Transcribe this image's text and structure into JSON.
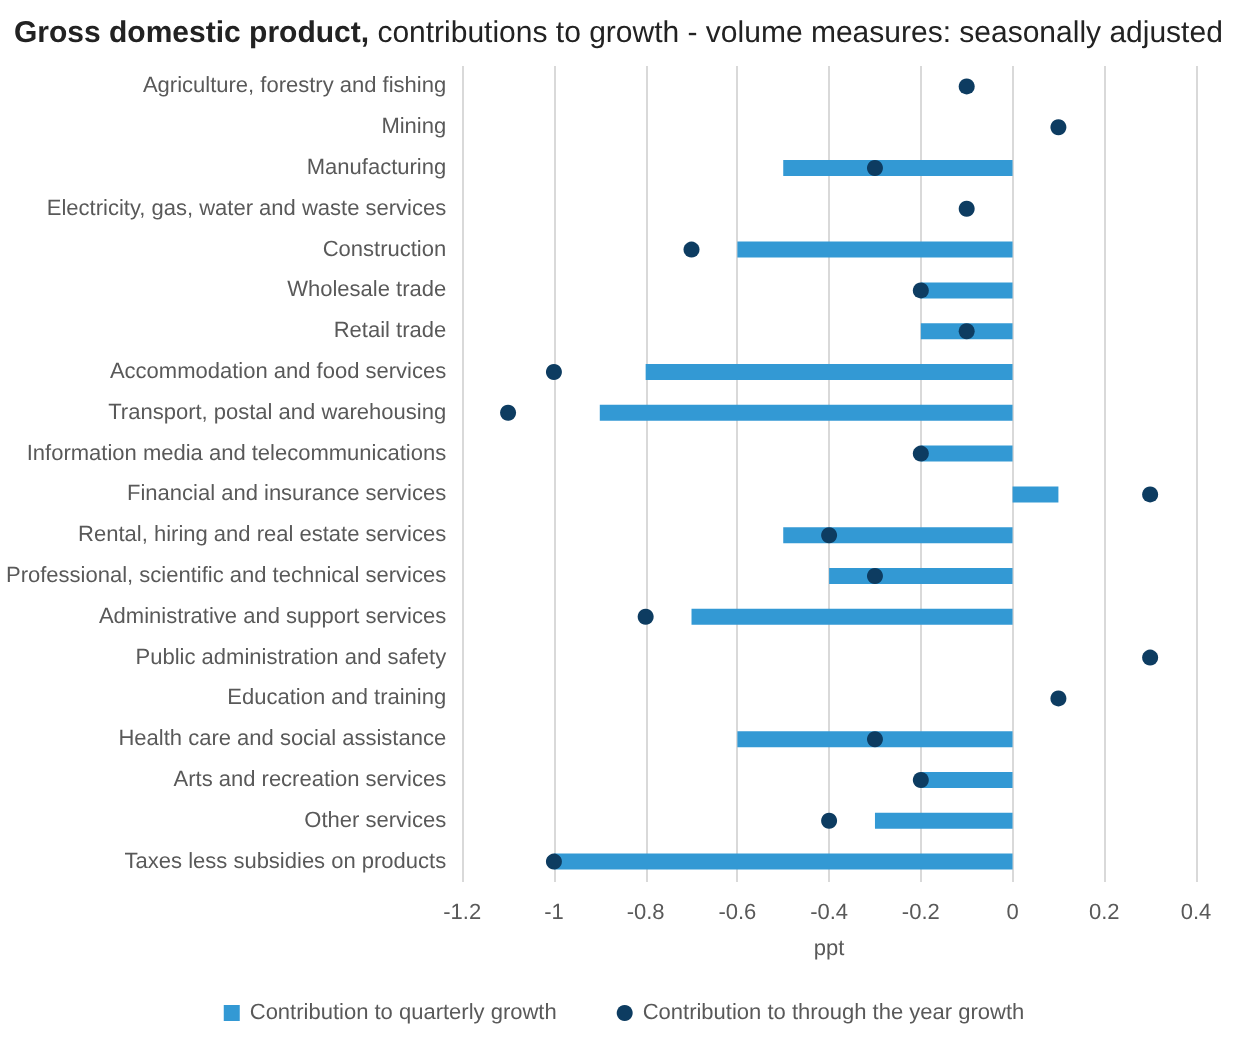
{
  "chart_data": {
    "type": "bar",
    "orientation": "horizontal",
    "title": "Gross domestic product,",
    "subtitle": "contributions to growth - volume measures: seasonally adjusted",
    "xlabel": "ppt",
    "categories": [
      "Agriculture, forestry and fishing",
      "Mining",
      "Manufacturing",
      "Electricity, gas, water and waste services",
      "Construction",
      "Wholesale trade",
      "Retail trade",
      "Accommodation and food services",
      "Transport, postal and warehousing",
      "Information media and telecommunications",
      "Financial and insurance services",
      "Rental, hiring and real estate services",
      "Professional, scientific and technical services",
      "Administrative and support services",
      "Public administration and safety",
      "Education and training",
      "Health care and social assistance",
      "Arts and recreation services",
      "Other services",
      "Taxes less subsidies on products"
    ],
    "series": [
      {
        "name": "Contribution to quarterly growth",
        "color": "#3399d4",
        "values": [
          0,
          0,
          -0.5,
          0,
          -0.6,
          -0.2,
          -0.2,
          -0.8,
          -0.9,
          -0.2,
          0.1,
          -0.5,
          -0.4,
          -0.7,
          0,
          0,
          -0.6,
          -0.2,
          -0.3,
          -1.0
        ]
      },
      {
        "name": "Contribution to through the year growth",
        "type": "scatter",
        "color": "#0d3c61",
        "values": [
          -0.1,
          0.1,
          -0.3,
          -0.1,
          -0.7,
          -0.2,
          -0.1,
          -1.0,
          -1.1,
          -0.2,
          0.3,
          -0.4,
          -0.3,
          -0.8,
          0.3,
          0.1,
          -0.3,
          -0.2,
          -0.4,
          -1.0
        ]
      }
    ],
    "xlim": [
      -1.2,
      0.4
    ],
    "xticks": [
      -1.2,
      -1,
      -0.8,
      -0.6,
      -0.4,
      -0.2,
      0,
      0.2,
      0.4
    ],
    "grid": "x",
    "legend": "bottom",
    "marker": "circle"
  }
}
